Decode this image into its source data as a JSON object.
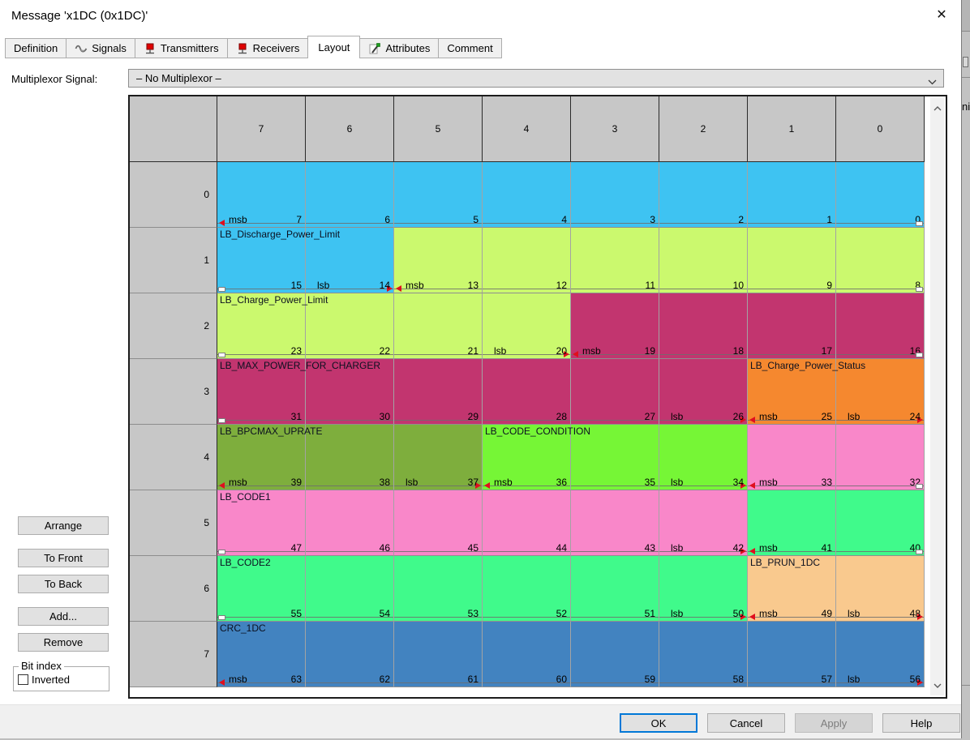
{
  "window": {
    "title": "Message 'x1DC (0x1DC)'"
  },
  "icons": {
    "close_glyph": "✕"
  },
  "tabs": [
    {
      "label": "Definition",
      "icon": null,
      "active": false
    },
    {
      "label": "Signals",
      "icon": "signal-wave",
      "active": false
    },
    {
      "label": "Transmitters",
      "icon": "red-pin",
      "active": false
    },
    {
      "label": "Receivers",
      "icon": "red-pin",
      "active": false
    },
    {
      "label": "Layout",
      "icon": null,
      "active": true
    },
    {
      "label": "Attributes",
      "icon": "pencil",
      "active": false
    },
    {
      "label": "Comment",
      "icon": null,
      "active": false
    }
  ],
  "multiplexor": {
    "label": "Multiplexor Signal:",
    "value": "– No Multiplexor –"
  },
  "signal_colors": {
    "blue": "#3ec3f2",
    "yellowgreen": "#cbf96e",
    "magenta": "#c2356f",
    "orange": "#f5882f",
    "olive": "#7eae3d",
    "green": "#76f636",
    "pink": "#f987c9",
    "springgreen": "#40fa8b",
    "peach": "#f9c98e",
    "steelblue": "#4283c0"
  },
  "layout_grid": {
    "col_headers": [
      "7",
      "6",
      "5",
      "4",
      "3",
      "2",
      "1",
      "0"
    ],
    "rows": [
      {
        "label": "0",
        "cells": [
          {
            "bit": 7,
            "color": "blue",
            "corner": "msb"
          },
          {
            "bit": 6,
            "color": "blue"
          },
          {
            "bit": 5,
            "color": "blue"
          },
          {
            "bit": 4,
            "color": "blue"
          },
          {
            "bit": 3,
            "color": "blue"
          },
          {
            "bit": 2,
            "color": "blue"
          },
          {
            "bit": 1,
            "color": "blue"
          },
          {
            "bit": 0,
            "color": "blue",
            "handle": "right"
          }
        ]
      },
      {
        "label": "1",
        "cells": [
          {
            "bit": 15,
            "color": "blue",
            "label": "LB_Discharge_Power_Limit",
            "handle": "left"
          },
          {
            "bit": 14,
            "color": "blue",
            "corner": "lsb"
          },
          {
            "bit": 13,
            "color": "yellowgreen",
            "corner": "msb"
          },
          {
            "bit": 12,
            "color": "yellowgreen"
          },
          {
            "bit": 11,
            "color": "yellowgreen"
          },
          {
            "bit": 10,
            "color": "yellowgreen"
          },
          {
            "bit": 9,
            "color": "yellowgreen"
          },
          {
            "bit": 8,
            "color": "yellowgreen",
            "handle": "right"
          }
        ]
      },
      {
        "label": "2",
        "cells": [
          {
            "bit": 23,
            "color": "yellowgreen",
            "label": "LB_Charge_Power_Limit",
            "handle": "left"
          },
          {
            "bit": 22,
            "color": "yellowgreen"
          },
          {
            "bit": 21,
            "color": "yellowgreen"
          },
          {
            "bit": 20,
            "color": "yellowgreen",
            "corner": "lsb"
          },
          {
            "bit": 19,
            "color": "magenta",
            "corner": "msb"
          },
          {
            "bit": 18,
            "color": "magenta"
          },
          {
            "bit": 17,
            "color": "magenta"
          },
          {
            "bit": 16,
            "color": "magenta",
            "handle": "right"
          }
        ]
      },
      {
        "label": "3",
        "cells": [
          {
            "bit": 31,
            "color": "magenta",
            "label": "LB_MAX_POWER_FOR_CHARGER",
            "handle": "left"
          },
          {
            "bit": 30,
            "color": "magenta"
          },
          {
            "bit": 29,
            "color": "magenta"
          },
          {
            "bit": 28,
            "color": "magenta"
          },
          {
            "bit": 27,
            "color": "magenta"
          },
          {
            "bit": 26,
            "color": "magenta",
            "corner": "lsb"
          },
          {
            "bit": 25,
            "color": "orange",
            "label": "LB_Charge_Power_Status",
            "corner": "msb"
          },
          {
            "bit": 24,
            "color": "orange",
            "corner": "lsb"
          }
        ]
      },
      {
        "label": "4",
        "cells": [
          {
            "bit": 39,
            "color": "olive",
            "label": "LB_BPCMAX_UPRATE",
            "corner": "msb"
          },
          {
            "bit": 38,
            "color": "olive"
          },
          {
            "bit": 37,
            "color": "olive",
            "corner": "lsb"
          },
          {
            "bit": 36,
            "color": "green",
            "label": "LB_CODE_CONDITION",
            "corner": "msb"
          },
          {
            "bit": 35,
            "color": "green"
          },
          {
            "bit": 34,
            "color": "green",
            "corner": "lsb"
          },
          {
            "bit": 33,
            "color": "pink",
            "corner": "msb"
          },
          {
            "bit": 32,
            "color": "pink",
            "handle": "right"
          }
        ]
      },
      {
        "label": "5",
        "cells": [
          {
            "bit": 47,
            "color": "pink",
            "label": "LB_CODE1",
            "handle": "left"
          },
          {
            "bit": 46,
            "color": "pink"
          },
          {
            "bit": 45,
            "color": "pink"
          },
          {
            "bit": 44,
            "color": "pink"
          },
          {
            "bit": 43,
            "color": "pink"
          },
          {
            "bit": 42,
            "color": "pink",
            "corner": "lsb"
          },
          {
            "bit": 41,
            "color": "springgreen",
            "corner": "msb"
          },
          {
            "bit": 40,
            "color": "springgreen",
            "handle": "right"
          }
        ]
      },
      {
        "label": "6",
        "cells": [
          {
            "bit": 55,
            "color": "springgreen",
            "label": "LB_CODE2",
            "handle": "left"
          },
          {
            "bit": 54,
            "color": "springgreen"
          },
          {
            "bit": 53,
            "color": "springgreen"
          },
          {
            "bit": 52,
            "color": "springgreen"
          },
          {
            "bit": 51,
            "color": "springgreen"
          },
          {
            "bit": 50,
            "color": "springgreen",
            "corner": "lsb"
          },
          {
            "bit": 49,
            "color": "peach",
            "label": "LB_PRUN_1DC",
            "corner": "msb"
          },
          {
            "bit": 48,
            "color": "peach",
            "corner": "lsb"
          }
        ]
      },
      {
        "label": "7",
        "cells": [
          {
            "bit": 63,
            "color": "steelblue",
            "label": "CRC_1DC",
            "corner": "msb"
          },
          {
            "bit": 62,
            "color": "steelblue"
          },
          {
            "bit": 61,
            "color": "steelblue"
          },
          {
            "bit": 60,
            "color": "steelblue"
          },
          {
            "bit": 59,
            "color": "steelblue"
          },
          {
            "bit": 58,
            "color": "steelblue"
          },
          {
            "bit": 57,
            "color": "steelblue"
          },
          {
            "bit": 56,
            "color": "steelblue",
            "corner": "lsb"
          }
        ]
      }
    ]
  },
  "side_buttons": [
    "Arrange",
    "To Front",
    "To Back",
    "Add...",
    "Remove"
  ],
  "bit_index": {
    "title": "Bit index",
    "checkbox_label": "Inverted",
    "checked": false
  },
  "footer_buttons": [
    {
      "label": "OK",
      "kind": "primary"
    },
    {
      "label": "Cancel",
      "kind": "normal"
    },
    {
      "label": "Apply",
      "kind": "disabled"
    },
    {
      "label": "Help",
      "kind": "normal"
    }
  ],
  "background_fragment": {
    "text": "ni"
  }
}
